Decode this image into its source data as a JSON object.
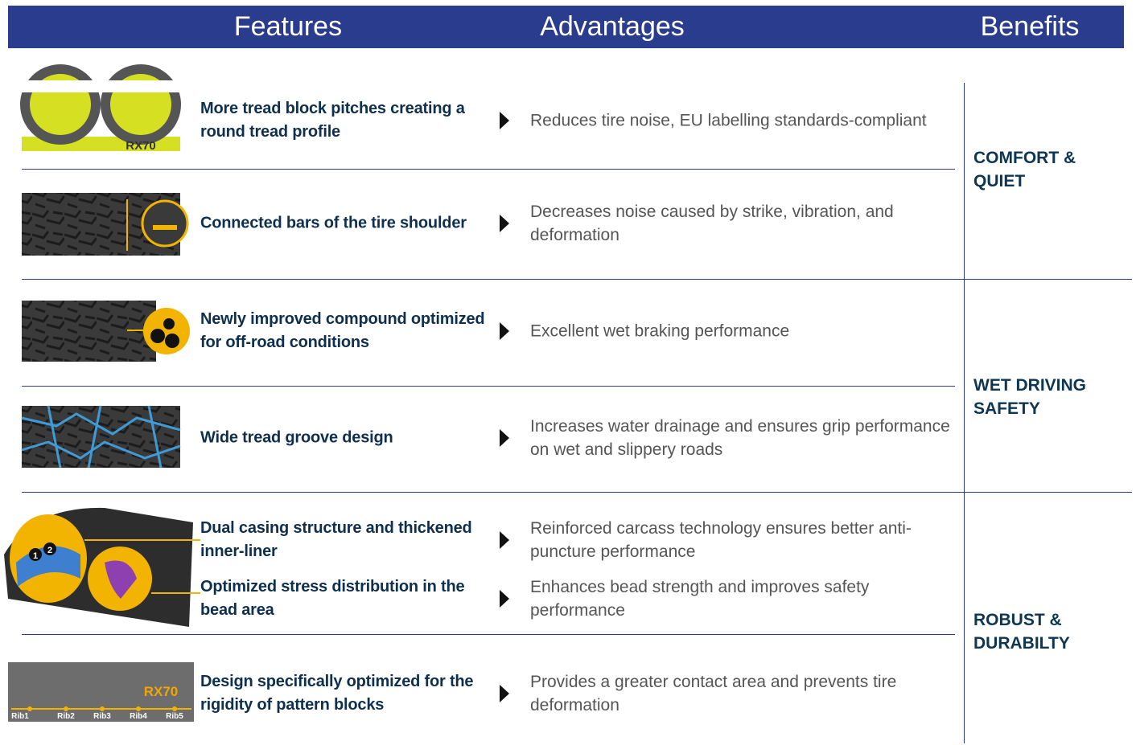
{
  "header": {
    "features": "Features",
    "advantages": "Advantages",
    "benefits": "Benefits"
  },
  "groups": [
    {
      "benefit": "COMFORT & QUIET",
      "rows": [
        {
          "feature": "More tread block pitches creating a round tread profile",
          "advantage": "Reduces tire noise, EU labelling standards-compliant"
        },
        {
          "feature": "Connected bars of the tire shoulder",
          "advantage": "Decreases noise caused by strike, vibration, and deformation"
        }
      ]
    },
    {
      "benefit": "WET DRIVING SAFETY",
      "rows": [
        {
          "feature": "Newly improved compound optimized for off-road conditions",
          "advantage": "Excellent wet braking performance"
        },
        {
          "feature": "Wide tread groove design",
          "advantage": "Increases water drainage and ensures grip performance on wet and slippery roads"
        }
      ]
    },
    {
      "benefit": "ROBUST & DURABILTY",
      "rows": [
        {
          "feature": "Dual casing structure and thickened inner-liner",
          "advantage": "Reinforced carcass technology ensures better anti-puncture performance"
        },
        {
          "feature": "Optimized stress distribution in the bead area",
          "advantage": "Enhances bead strength and improves safety performance"
        },
        {
          "feature": "Design specifically optimized for the rigidity of pattern blocks",
          "advantage": "Provides a greater contact area and prevents tire deformation"
        }
      ]
    }
  ],
  "image_labels": {
    "pitch_brand": "RX70",
    "casing": [
      "1",
      "2"
    ],
    "ribs": [
      "Rib1",
      "Rib2",
      "Rib3",
      "Rib4",
      "Rib5"
    ],
    "ribs_brand": "RX70"
  }
}
